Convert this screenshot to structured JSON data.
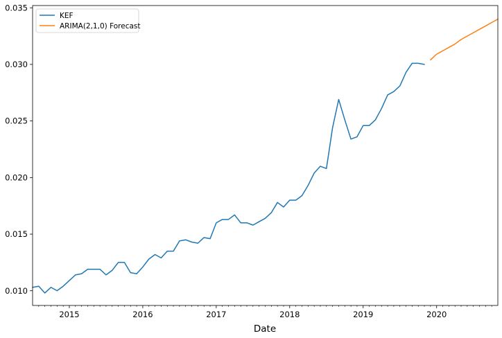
{
  "chart_data": {
    "type": "line",
    "title": "",
    "xlabel": "Date",
    "ylabel": "",
    "xlim": [
      "2014-07",
      "2020-11"
    ],
    "ylim": [
      0.0087,
      0.0352
    ],
    "grid": false,
    "legend_position": "top-left",
    "x_ticks": [
      {
        "date": "2015-01",
        "label": "2015"
      },
      {
        "date": "2016-01",
        "label": "2016"
      },
      {
        "date": "2017-01",
        "label": "2017"
      },
      {
        "date": "2018-01",
        "label": "2018"
      },
      {
        "date": "2019-01",
        "label": "2019"
      },
      {
        "date": "2020-01",
        "label": "2020"
      }
    ],
    "y_ticks": [
      {
        "value": 0.01,
        "label": "0.010"
      },
      {
        "value": 0.015,
        "label": "0.015"
      },
      {
        "value": 0.02,
        "label": "0.020"
      },
      {
        "value": 0.025,
        "label": "0.025"
      },
      {
        "value": 0.03,
        "label": "0.030"
      },
      {
        "value": 0.035,
        "label": "0.035"
      }
    ],
    "series": [
      {
        "name": "KEF",
        "color": "#1f77b4",
        "x": [
          "2014-07",
          "2014-08",
          "2014-09",
          "2014-10",
          "2014-11",
          "2014-12",
          "2015-01",
          "2015-02",
          "2015-03",
          "2015-04",
          "2015-05",
          "2015-06",
          "2015-07",
          "2015-08",
          "2015-09",
          "2015-10",
          "2015-11",
          "2015-12",
          "2016-01",
          "2016-02",
          "2016-03",
          "2016-04",
          "2016-05",
          "2016-06",
          "2016-07",
          "2016-08",
          "2016-09",
          "2016-10",
          "2016-11",
          "2016-12",
          "2017-01",
          "2017-02",
          "2017-03",
          "2017-04",
          "2017-05",
          "2017-06",
          "2017-07",
          "2017-08",
          "2017-09",
          "2017-10",
          "2017-11",
          "2017-12",
          "2018-01",
          "2018-02",
          "2018-03",
          "2018-04",
          "2018-05",
          "2018-06",
          "2018-07",
          "2018-08",
          "2018-09",
          "2018-10",
          "2018-11",
          "2018-12",
          "2019-01",
          "2019-02",
          "2019-03",
          "2019-04",
          "2019-05",
          "2019-06",
          "2019-07",
          "2019-08",
          "2019-09",
          "2019-10",
          "2019-11"
        ],
        "values": [
          0.0103,
          0.0104,
          0.0098,
          0.0103,
          0.01,
          0.0104,
          0.0109,
          0.0114,
          0.0115,
          0.0119,
          0.0119,
          0.0119,
          0.0114,
          0.0118,
          0.0125,
          0.0125,
          0.0116,
          0.0115,
          0.0121,
          0.0128,
          0.0132,
          0.0129,
          0.0135,
          0.0135,
          0.0144,
          0.0145,
          0.0143,
          0.0142,
          0.0147,
          0.0146,
          0.016,
          0.0163,
          0.0163,
          0.0167,
          0.016,
          0.016,
          0.0158,
          0.0161,
          0.0164,
          0.0169,
          0.0178,
          0.0174,
          0.018,
          0.018,
          0.0184,
          0.0193,
          0.0204,
          0.021,
          0.0208,
          0.0244,
          0.0269,
          0.0251,
          0.0234,
          0.0236,
          0.0246,
          0.0246,
          0.0251,
          0.0261,
          0.0273,
          0.0276,
          0.0281,
          0.0293,
          0.0301,
          0.0301,
          0.03
        ]
      },
      {
        "name": "ARIMA(2,1,0) Forecast",
        "color": "#ff7f0e",
        "x": [
          "2019-12",
          "2020-01",
          "2020-02",
          "2020-03",
          "2020-04",
          "2020-05",
          "2020-06",
          "2020-07",
          "2020-08",
          "2020-09",
          "2020-10",
          "2020-11"
        ],
        "values": [
          0.0304,
          0.0309,
          0.0312,
          0.0315,
          0.0318,
          0.0322,
          0.0325,
          0.0328,
          0.0331,
          0.0334,
          0.0337,
          0.034
        ]
      }
    ]
  }
}
